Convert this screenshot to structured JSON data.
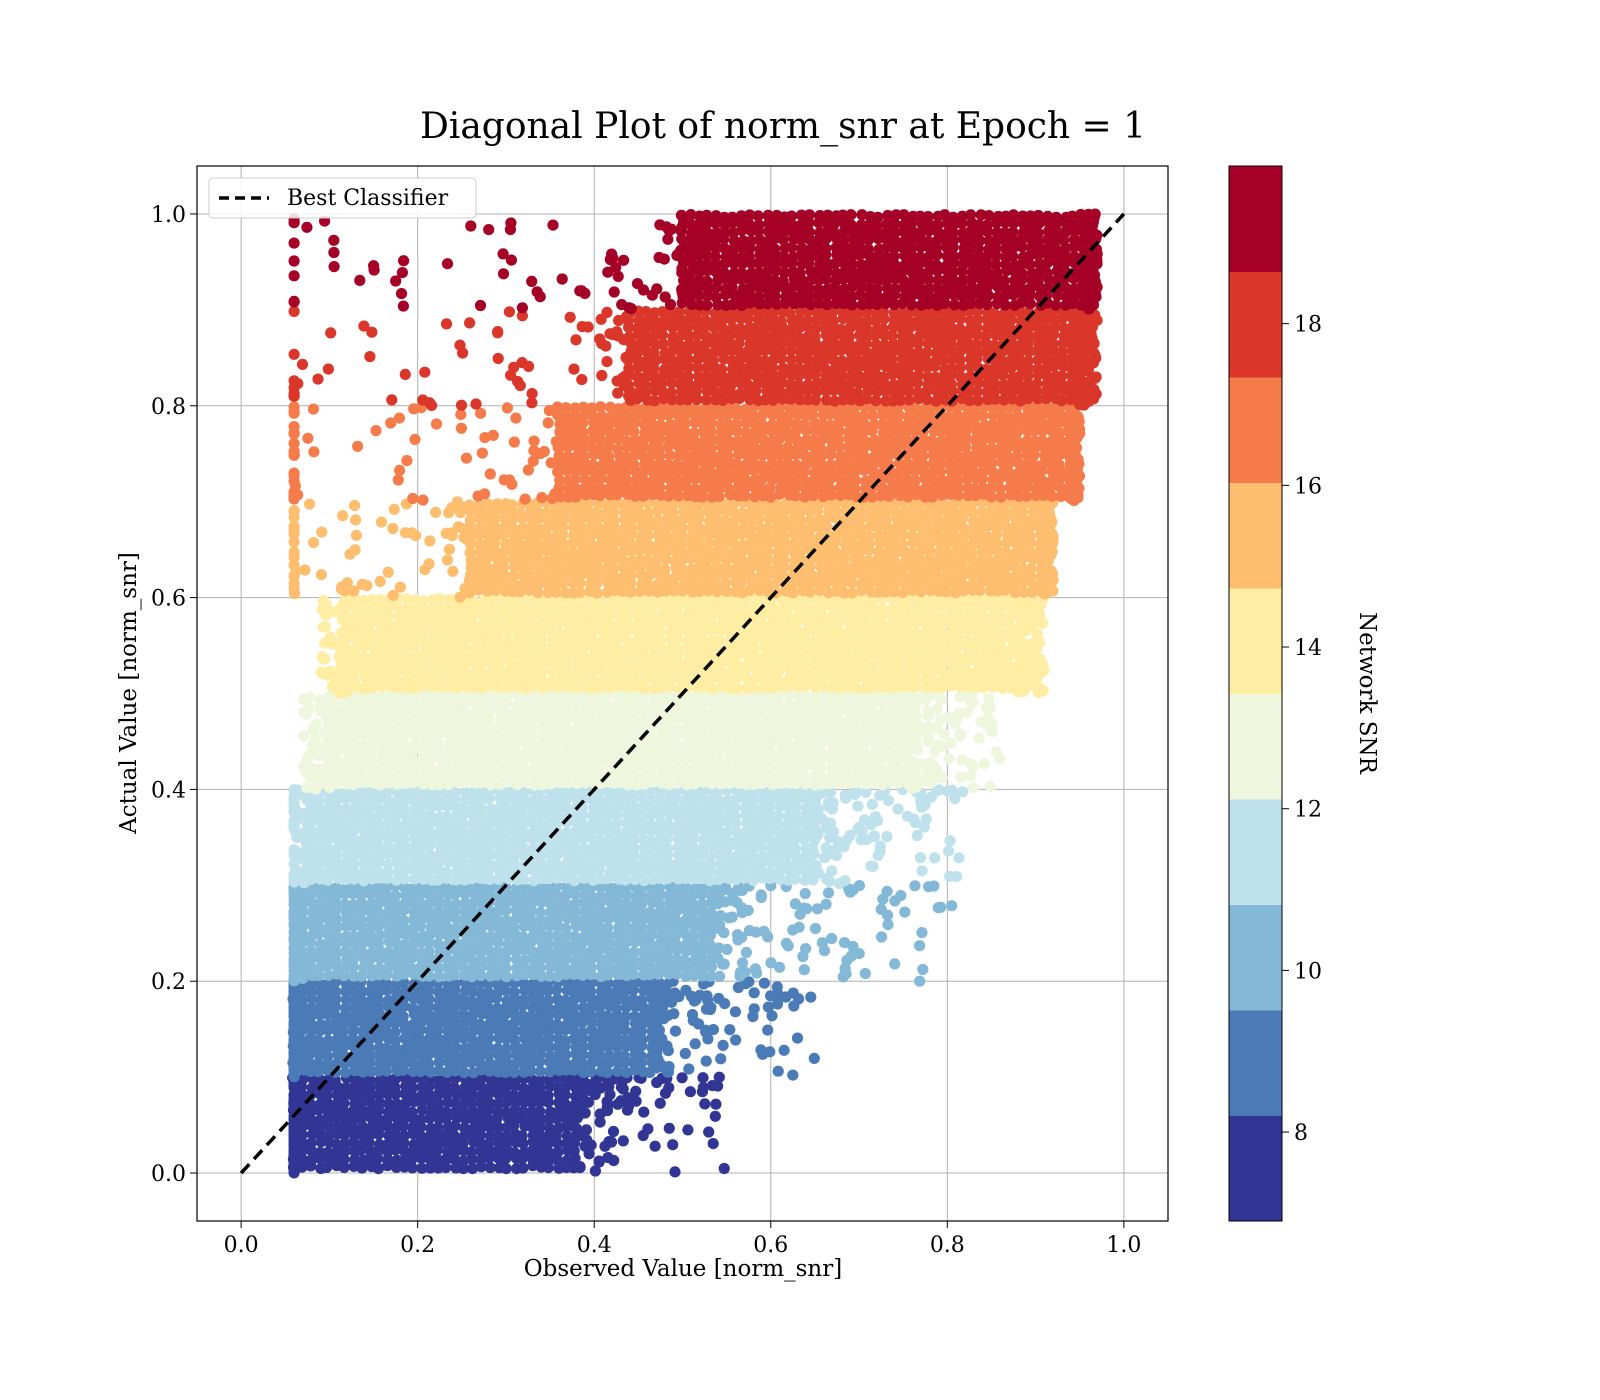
{
  "chart_data": {
    "type": "scatter",
    "title": "Diagonal Plot of norm_snr at Epoch = 1",
    "xlabel": "Observed Value [norm_snr]",
    "ylabel": "Actual Value [norm_snr]",
    "xlim": [
      -0.05,
      1.05
    ],
    "ylim": [
      -0.05,
      1.05
    ],
    "x_ticks": [
      0.0,
      0.2,
      0.4,
      0.6,
      0.8,
      1.0
    ],
    "x_tick_labels": [
      "0.0",
      "0.2",
      "0.4",
      "0.6",
      "0.8",
      "1.0"
    ],
    "y_ticks": [
      0.0,
      0.2,
      0.4,
      0.6,
      0.8,
      1.0
    ],
    "y_tick_labels": [
      "0.0",
      "0.2",
      "0.4",
      "0.6",
      "0.8",
      "1.0"
    ],
    "grid": true,
    "legend": {
      "placement": "upper-left",
      "entries": [
        {
          "label": "Best Classifier",
          "style": "dashed",
          "color": "#000000"
        }
      ]
    },
    "reference_line": {
      "name": "Best Classifier",
      "x": [
        0.0,
        1.0
      ],
      "y": [
        0.0,
        1.0
      ]
    },
    "bands": [
      {
        "y_range": [
          0.0,
          0.1
        ],
        "x_core": [
          0.06,
          0.38
        ],
        "x_tail_max": 0.55,
        "color": "#313695"
      },
      {
        "y_range": [
          0.1,
          0.2
        ],
        "x_core": [
          0.06,
          0.47
        ],
        "x_tail_max": 0.65,
        "color": "#4a7bb7"
      },
      {
        "y_range": [
          0.2,
          0.3
        ],
        "x_core": [
          0.07,
          0.54
        ],
        "x_tail_max": 0.81,
        "color": "#83b8d7"
      },
      {
        "y_range": [
          0.3,
          0.4
        ],
        "x_core": [
          0.08,
          0.65
        ],
        "x_tail_max": 0.82,
        "color": "#bfe1ec"
      },
      {
        "y_range": [
          0.4,
          0.5
        ],
        "x_core": [
          0.1,
          0.76
        ],
        "x_tail_max": 0.86,
        "color": "#eef7de"
      },
      {
        "y_range": [
          0.5,
          0.6
        ],
        "x_core": [
          0.12,
          0.88
        ],
        "x_tail_max": 0.91,
        "color": "#feeda2"
      },
      {
        "y_range": [
          0.6,
          0.7
        ],
        "x_core": [
          0.26,
          0.91
        ],
        "x_tail_max": 0.92,
        "color": "#fdbe70"
      },
      {
        "y_range": [
          0.7,
          0.8
        ],
        "x_core": [
          0.36,
          0.94
        ],
        "x_tail_max": 0.95,
        "color": "#f57c4a"
      },
      {
        "y_range": [
          0.8,
          0.9
        ],
        "x_core": [
          0.44,
          0.95
        ],
        "x_tail_max": 0.97,
        "color": "#da372a"
      },
      {
        "y_range": [
          0.9,
          1.0
        ],
        "x_core": [
          0.5,
          0.96
        ],
        "x_tail_max": 0.97,
        "color": "#a50026"
      }
    ],
    "colorbar": {
      "label": "Network SNR",
      "range": [
        6.9,
        19.95
      ],
      "ticks": [
        8,
        10,
        12,
        14,
        16,
        18
      ],
      "tick_labels": [
        "8",
        "10",
        "12",
        "14",
        "16",
        "18"
      ],
      "colors": [
        "#313695",
        "#4a7bb7",
        "#83b8d7",
        "#bfe1ec",
        "#eef7de",
        "#feeda2",
        "#fdbe70",
        "#f57c4a",
        "#da372a",
        "#a50026"
      ]
    }
  }
}
